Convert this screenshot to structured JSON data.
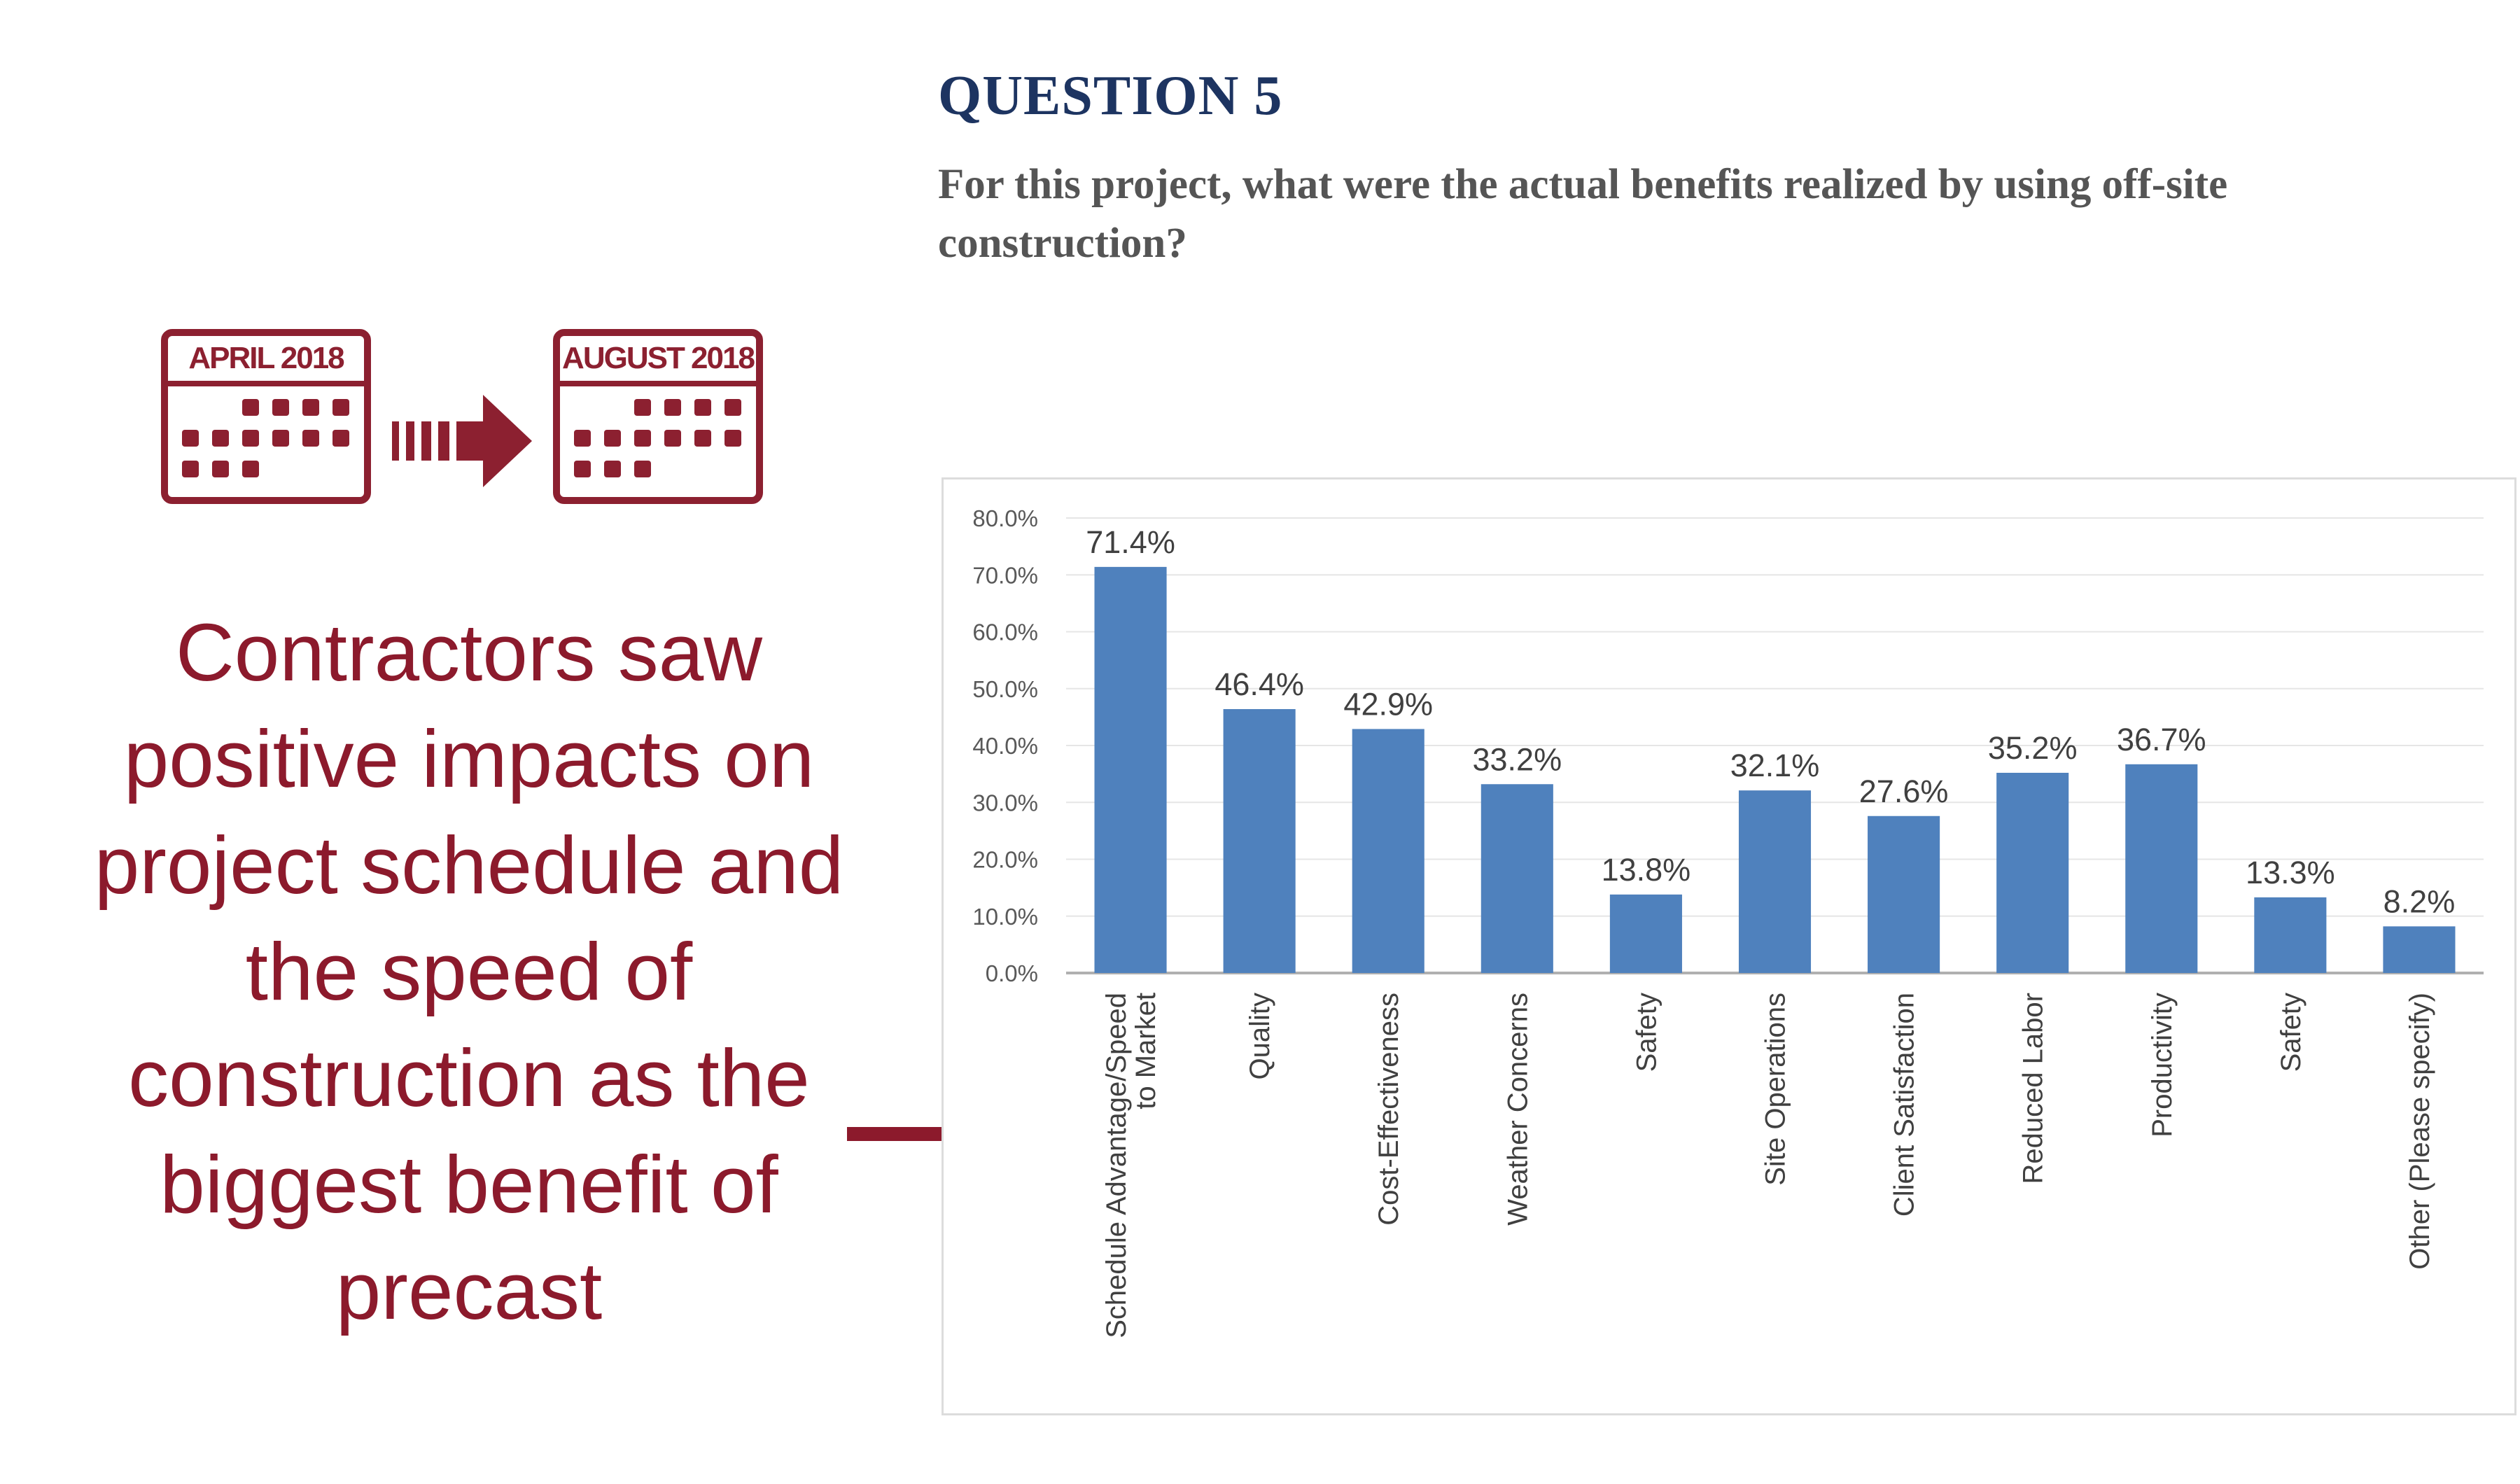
{
  "header": {
    "question_title": "QUESTION 5",
    "question_text": "For this project, what were the actual benefits realized by using off-site construction?"
  },
  "timeline": {
    "from_label": "APRIL 2018",
    "to_label": "AUGUST 2018",
    "icons": [
      "calendar-icon",
      "dashed-arrow-icon",
      "calendar-icon"
    ]
  },
  "callout": {
    "lines": [
      "Contractors saw",
      "positive impacts on",
      "project schedule and",
      "the speed of",
      "construction as the",
      "biggest benefit of",
      "precast"
    ],
    "icon": "arrow-right-icon"
  },
  "colors": {
    "accent": "#8c1a2c",
    "title": "#1d3461",
    "bar": "#4f81bd"
  },
  "chart_data": {
    "type": "bar",
    "categories": [
      "Schedule Advantage/Speed to Market",
      "Quality",
      "Cost-Effectiveness",
      "Weather Concerns",
      "Safety",
      "Site Operations",
      "Client Satisfaction",
      "Reduced Labor",
      "Productivity",
      "Safety",
      "Other (Please specify)"
    ],
    "category_lines": [
      [
        "Schedule Advantage/Speed",
        "to Market"
      ],
      [
        "Quality"
      ],
      [
        "Cost-Effectiveness"
      ],
      [
        "Weather Concerns"
      ],
      [
        "Safety"
      ],
      [
        "Site Operations"
      ],
      [
        "Client Satisfaction"
      ],
      [
        "Reduced Labor"
      ],
      [
        "Productivity"
      ],
      [
        "Safety"
      ],
      [
        "Other (Please specify)"
      ]
    ],
    "values": [
      71.4,
      46.4,
      42.9,
      33.2,
      13.8,
      32.1,
      27.6,
      35.2,
      36.7,
      13.3,
      8.2
    ],
    "value_labels": [
      "71.4%",
      "46.4%",
      "42.9%",
      "33.2%",
      "13.8%",
      "32.1%",
      "27.6%",
      "35.2%",
      "36.7%",
      "13.3%",
      "8.2%"
    ],
    "yticks": [
      0,
      10,
      20,
      30,
      40,
      50,
      60,
      70,
      80
    ],
    "ytick_labels": [
      "0.0%",
      "10.0%",
      "20.0%",
      "30.0%",
      "40.0%",
      "50.0%",
      "60.0%",
      "70.0%",
      "80.0%"
    ],
    "ylim": [
      0,
      80
    ],
    "title": "",
    "xlabel": "",
    "ylabel": "",
    "grid": true,
    "legend": "none"
  }
}
